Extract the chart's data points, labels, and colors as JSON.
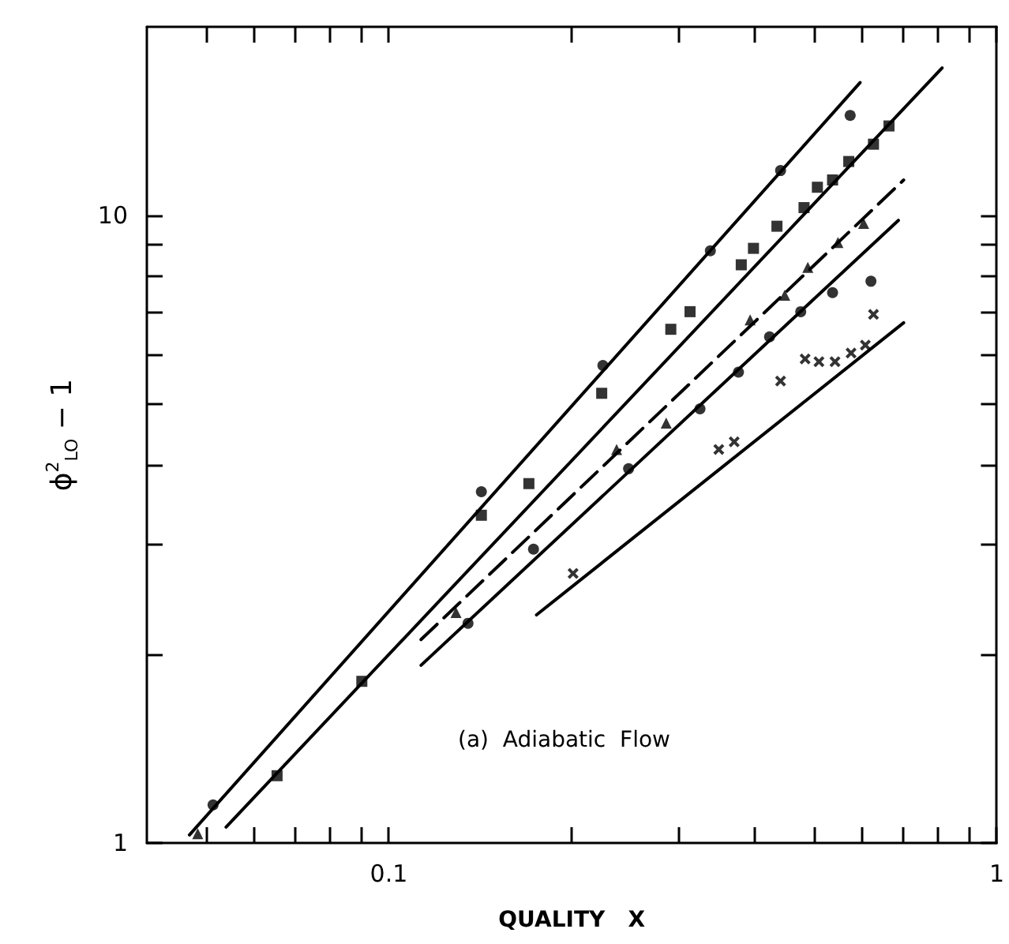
{
  "chart_data": {
    "type": "scatter",
    "xlabel": "QUALITY   X",
    "ylabel": "ϕ$^{2}$$_{LO}$ − 1",
    "annotations": [
      "(a)  Adiabatic  Flow"
    ],
    "log": "xy",
    "grid": false,
    "xlim": [
      0.04,
      1
    ],
    "ylim": [
      1,
      20
    ],
    "xticks": [
      {
        "value": 0.05,
        "label": null
      },
      {
        "value": 0.06,
        "label": null
      },
      {
        "value": 0.07,
        "label": null
      },
      {
        "value": 0.08,
        "label": null
      },
      {
        "value": 0.09,
        "label": null
      },
      0.1,
      {
        "value": 0.2,
        "label": null
      },
      {
        "value": 0.3,
        "label": null
      },
      {
        "value": 0.4,
        "label": null
      },
      {
        "value": 0.5,
        "label": null
      },
      {
        "value": 0.6,
        "label": null
      },
      {
        "value": 0.7,
        "label": null
      },
      {
        "value": 0.8,
        "label": null
      },
      {
        "value": 0.9,
        "label": null
      },
      1
    ],
    "yticks": [
      1,
      {
        "value": 2,
        "label": null
      },
      {
        "value": 3,
        "label": null
      },
      {
        "value": 4,
        "label": null
      },
      {
        "value": 5,
        "label": null
      },
      {
        "value": 6,
        "label": null
      },
      {
        "value": 7,
        "label": null
      },
      {
        "value": 8,
        "label": null
      },
      {
        "value": 9,
        "label": null
      },
      10
    ],
    "series": [
      {
        "type": "line",
        "color": "#000000",
        "marker": "none",
        "line_style": "solid",
        "x": [
          0.047,
          0.596
        ],
        "values": [
          1.03,
          16.3
        ]
      },
      {
        "type": "line",
        "color": "#000000",
        "marker": "none",
        "line_style": "solid",
        "x": [
          0.054,
          0.813
        ],
        "values": [
          1.06,
          17.2
        ]
      },
      {
        "type": "line",
        "color": "#000000",
        "marker": "none",
        "line_style": "dashed",
        "x": [
          0.113,
          0.703
        ],
        "values": [
          2.11,
          11.4
        ]
      },
      {
        "type": "line",
        "color": "#000000",
        "marker": "none",
        "line_style": "solid",
        "x": [
          0.113,
          0.689
        ],
        "values": [
          1.92,
          9.83
        ]
      },
      {
        "type": "line",
        "color": "#000000",
        "marker": "none",
        "line_style": "solid",
        "x": [
          0.175,
          0.703
        ],
        "values": [
          2.31,
          6.75
        ]
      },
      {
        "color": "#000000",
        "marker": "circle",
        "x": [
          0.0514,
          0.142,
          0.225,
          0.338,
          0.441,
          0.574
        ],
        "values": [
          1.15,
          3.63,
          5.77,
          8.79,
          11.8,
          14.45
        ]
      },
      {
        "color": "#000000",
        "marker": "square",
        "x": [
          0.0655,
          0.0903,
          0.142,
          0.17,
          0.224,
          0.291,
          0.313,
          0.38,
          0.398,
          0.435,
          0.482,
          0.507,
          0.537,
          0.571,
          0.627,
          0.665
        ],
        "values": [
          1.28,
          1.81,
          3.33,
          3.74,
          5.21,
          6.59,
          7.03,
          8.35,
          8.87,
          9.62,
          10.3,
          11.1,
          11.4,
          12.2,
          13.0,
          13.9
        ]
      },
      {
        "color": "#000000",
        "marker": "triangle",
        "x": [
          0.0485,
          0.129,
          0.237,
          0.286,
          0.393,
          0.448,
          0.489,
          0.548,
          0.604
        ],
        "values": [
          1.035,
          2.33,
          4.24,
          4.67,
          6.82,
          7.47,
          8.27,
          9.06,
          9.72
        ]
      },
      {
        "color": "#000000",
        "marker": "circle",
        "x": [
          0.135,
          0.173,
          0.248,
          0.325,
          0.376,
          0.423,
          0.476,
          0.537,
          0.621
        ],
        "values": [
          2.24,
          2.94,
          3.95,
          4.92,
          5.63,
          6.41,
          7.03,
          7.54,
          7.86
        ]
      },
      {
        "color": "#000000",
        "marker": "cross",
        "x": [
          0.201,
          0.349,
          0.37,
          0.441,
          0.484,
          0.51,
          0.542,
          0.576,
          0.608,
          0.627
        ],
        "values": [
          2.69,
          4.24,
          4.36,
          5.45,
          5.91,
          5.85,
          5.85,
          6.04,
          6.22,
          6.96
        ]
      }
    ]
  }
}
